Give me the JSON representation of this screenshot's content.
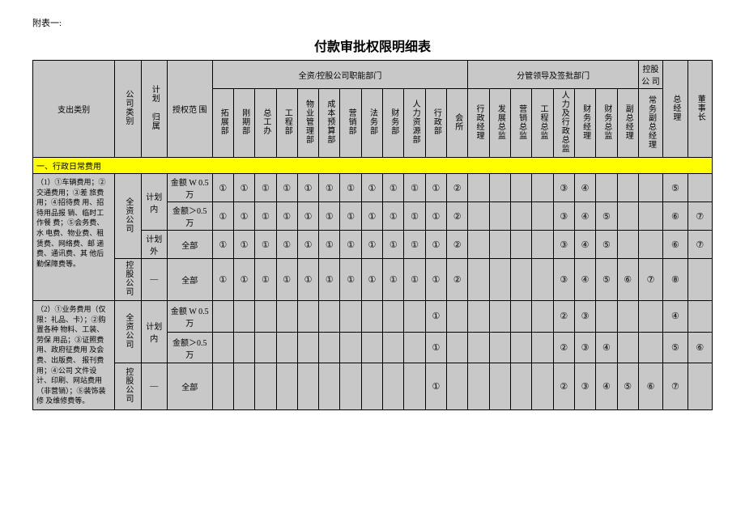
{
  "annex_label": "附表一:",
  "title": "付款审批权限明细表",
  "header": {
    "expense_category": "支出类别",
    "company_type": "公司类别",
    "plan_attr": "计划 归属",
    "auth_scope": "授权范 围",
    "group1": "全资/控股公司职能部门",
    "group2": "分管领导及签批部门",
    "group3": "控股公 司",
    "depts": [
      "拓展部",
      "刚期部",
      "总工办",
      "工程部",
      "物业管理部",
      "成本预算部",
      "营销部",
      "法务部",
      "财务部",
      "人力资源部",
      "行政部",
      "会所",
      "行政经理",
      "发展总监",
      "营销总监",
      "工程总监",
      "人力及行政总监",
      "财务经理",
      "财务总监",
      "副总经理",
      "常务副总经理",
      "总经理",
      "董事长"
    ]
  },
  "section1_title": "一、行政日常费用",
  "row_group1": {
    "desc": "（1）①车辆费用；②交通费用；③差 旅费用；④招待费 用、招待用品报 销、临时工作餐 费；⑤会务费、水 电费、物业费、租 赁费、网络费、邮 递费、通讯费、其 他后勤保障费等。",
    "company_a": "全资公司",
    "company_b": "控股公司",
    "plan_in": "计划内",
    "plan_out": "计划外",
    "plan_dash": "—",
    "scope_w": "金额 W 0.5 万",
    "scope_gt": "金额＞0.5 万",
    "scope_all": "全部",
    "r1": [
      "①",
      "①",
      "①",
      "①",
      "①",
      "①",
      "①",
      "①",
      "①",
      "①",
      "①",
      "②",
      "",
      "",
      "",
      "",
      "③",
      "④",
      "",
      "",
      "",
      "⑤",
      ""
    ],
    "r2": [
      "①",
      "①",
      "①",
      "①",
      "①",
      "①",
      "①",
      "①",
      "①",
      "①",
      "①",
      "②",
      "",
      "",
      "",
      "",
      "③",
      "④",
      "⑤",
      "",
      "",
      "⑥",
      "⑦"
    ],
    "r3": [
      "①",
      "①",
      "①",
      "①",
      "①",
      "①",
      "①",
      "①",
      "①",
      "①",
      "①",
      "②",
      "",
      "",
      "",
      "",
      "③",
      "④",
      "⑤",
      "",
      "",
      "⑥",
      "⑦"
    ],
    "r4": [
      "①",
      "①",
      "①",
      "①",
      "①",
      "①",
      "①",
      "①",
      "①",
      "①",
      "①",
      "②",
      "",
      "",
      "",
      "",
      "③",
      "④",
      "⑤",
      "⑥",
      "⑦",
      "⑧",
      ""
    ]
  },
  "row_group2": {
    "desc": "（2）①业务费用（仅限：礼品、卡）；②购置各种 物料、工装、劳保 用品；③证照费 用、政府征费用 及会费、出版费、 报刊费用；④公司 文件设计、印刷、网站费用（非营销）；⑤装饰装修 及维修费等。",
    "company_a": "全资公司",
    "company_b": "控股公司",
    "plan_in": "计划内",
    "plan_dash": "—",
    "scope_w": "金额 W 0.5 万",
    "scope_gt": "金额＞0.5 万",
    "scope_all": "全部",
    "r1": [
      "",
      "",
      "",
      "",
      "",
      "",
      "",
      "",
      "",
      "",
      "①",
      "",
      "",
      "",
      "",
      "",
      "②",
      "③",
      "",
      "",
      "",
      "④",
      ""
    ],
    "r2": [
      "",
      "",
      "",
      "",
      "",
      "",
      "",
      "",
      "",
      "",
      "①",
      "",
      "",
      "",
      "",
      "",
      "②",
      "③",
      "④",
      "",
      "",
      "⑤",
      "⑥"
    ],
    "r3": [
      "",
      "",
      "",
      "",
      "",
      "",
      "",
      "",
      "",
      "",
      "①",
      "",
      "",
      "",
      "",
      "",
      "②",
      "③",
      "④",
      "⑤",
      "⑥",
      "⑦",
      ""
    ]
  }
}
